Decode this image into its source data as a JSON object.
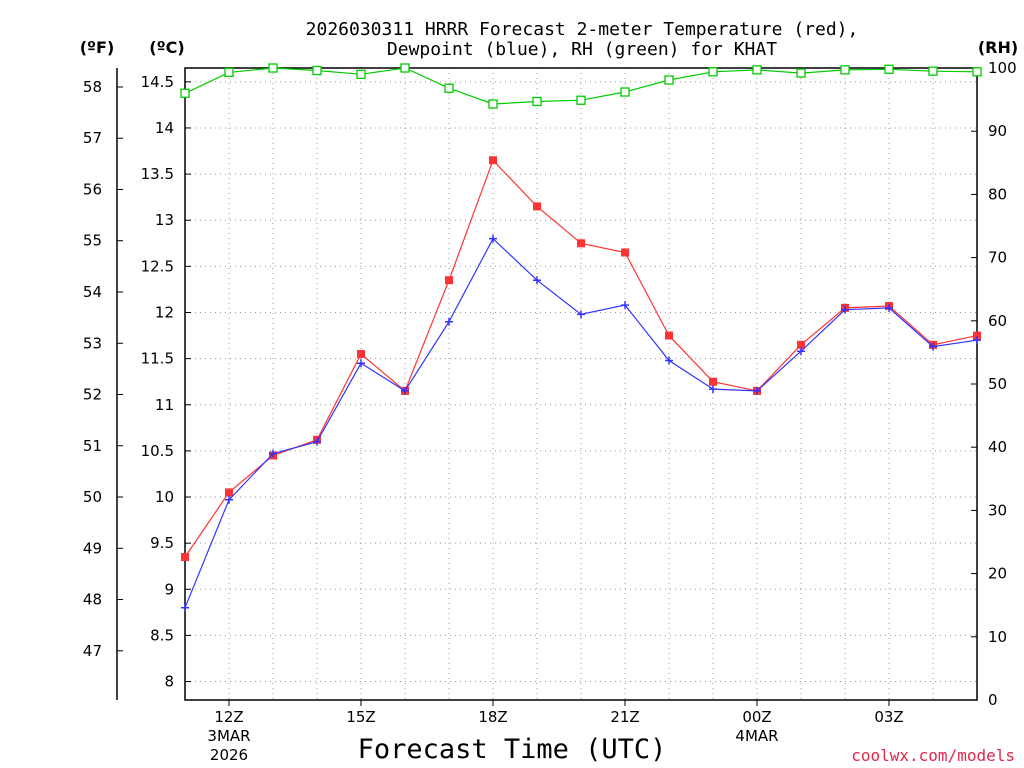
{
  "chart_data": {
    "type": "line",
    "title_line1": "2026030311 HRRR Forecast 2-meter Temperature (red),",
    "title_line2": "Dewpoint (blue), RH (green) for KHAT",
    "xlabel": "Forecast Time (UTC)",
    "unit_labels": {
      "fahrenheit": "(ºF)",
      "celsius": "(ºC)",
      "rh": "(RH)"
    },
    "watermark": "coolwx.com/models",
    "x_hours": [
      11,
      12,
      13,
      14,
      15,
      16,
      17,
      18,
      19,
      20,
      21,
      22,
      23,
      24,
      25,
      26,
      27,
      28,
      29
    ],
    "xlim": [
      11,
      29
    ],
    "x_ticks": [
      {
        "hour": 12,
        "label": "12Z",
        "sub1": "3MAR",
        "sub2": "2026"
      },
      {
        "hour": 15,
        "label": "15Z",
        "sub1": "",
        "sub2": ""
      },
      {
        "hour": 18,
        "label": "18Z",
        "sub1": "",
        "sub2": ""
      },
      {
        "hour": 21,
        "label": "21Z",
        "sub1": "",
        "sub2": ""
      },
      {
        "hour": 24,
        "label": "00Z",
        "sub1": "4MAR",
        "sub2": ""
      },
      {
        "hour": 27,
        "label": "03Z",
        "sub1": "",
        "sub2": ""
      }
    ],
    "ylim_c": [
      7.8,
      14.65
    ],
    "c_ticks": [
      "8",
      "8.5",
      "9",
      "9.5",
      "10",
      "10.5",
      "11",
      "11.5",
      "12",
      "12.5",
      "13",
      "13.5",
      "14",
      "14.5"
    ],
    "f_ticks": [
      "47",
      "48",
      "49",
      "50",
      "51",
      "52",
      "53",
      "54",
      "55",
      "56",
      "57",
      "58"
    ],
    "ylim_rh": [
      0,
      100
    ],
    "rh_ticks": [
      "0",
      "10",
      "20",
      "30",
      "40",
      "50",
      "60",
      "70",
      "80",
      "90",
      "100"
    ],
    "series": [
      {
        "name": "Temperature",
        "unit": "C",
        "color": "#ff3333",
        "marker": "square-filled",
        "values": [
          9.35,
          10.05,
          10.45,
          10.62,
          11.55,
          11.15,
          12.35,
          13.65,
          13.15,
          12.75,
          12.65,
          11.75,
          11.25,
          11.15,
          11.65,
          12.05,
          12.07,
          11.65,
          11.75
        ]
      },
      {
        "name": "Dewpoint",
        "unit": "C",
        "color": "#3333ff",
        "marker": "plus",
        "values": [
          8.8,
          9.97,
          10.47,
          10.6,
          11.45,
          11.15,
          11.9,
          12.8,
          12.35,
          11.98,
          12.08,
          11.48,
          11.17,
          11.15,
          11.58,
          12.03,
          12.05,
          11.63,
          11.7
        ]
      },
      {
        "name": "RH",
        "unit": "%",
        "color": "#00cc00",
        "marker": "square-open",
        "values": [
          96,
          99.3,
          100,
          99.6,
          99,
          100,
          96.8,
          94.3,
          94.7,
          94.9,
          96.2,
          98.1,
          99.4,
          99.7,
          99.2,
          99.7,
          99.8,
          99.5,
          99.4
        ]
      }
    ]
  }
}
